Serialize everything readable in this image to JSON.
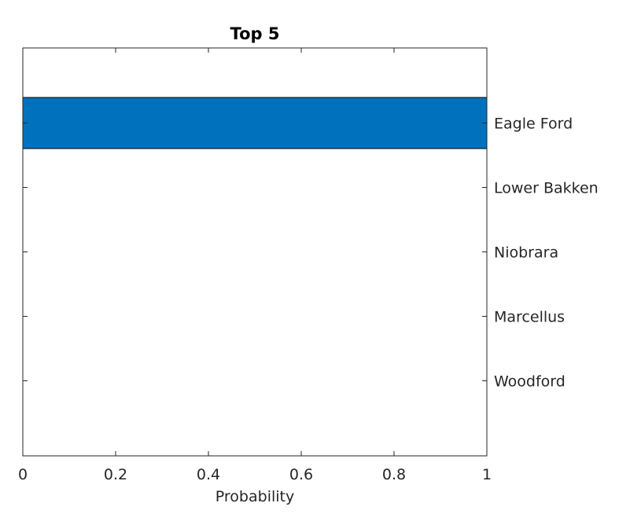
{
  "chart_data": {
    "type": "bar",
    "orientation": "horizontal",
    "title": "Top 5",
    "xlabel": "Probability",
    "ylabel": "",
    "categories": [
      "Eagle Ford",
      "Lower Bakken",
      "Niobrara",
      "Marcellus",
      "Woodford"
    ],
    "values": [
      1.0,
      0.0,
      0.0,
      0.0,
      0.0
    ],
    "xlim": [
      0,
      1
    ],
    "xticks": [
      "0",
      "0.2",
      "0.4",
      "0.6",
      "0.8",
      "1"
    ],
    "category_axis_side": "right",
    "grid": false,
    "bar_color": "#0072BD"
  }
}
